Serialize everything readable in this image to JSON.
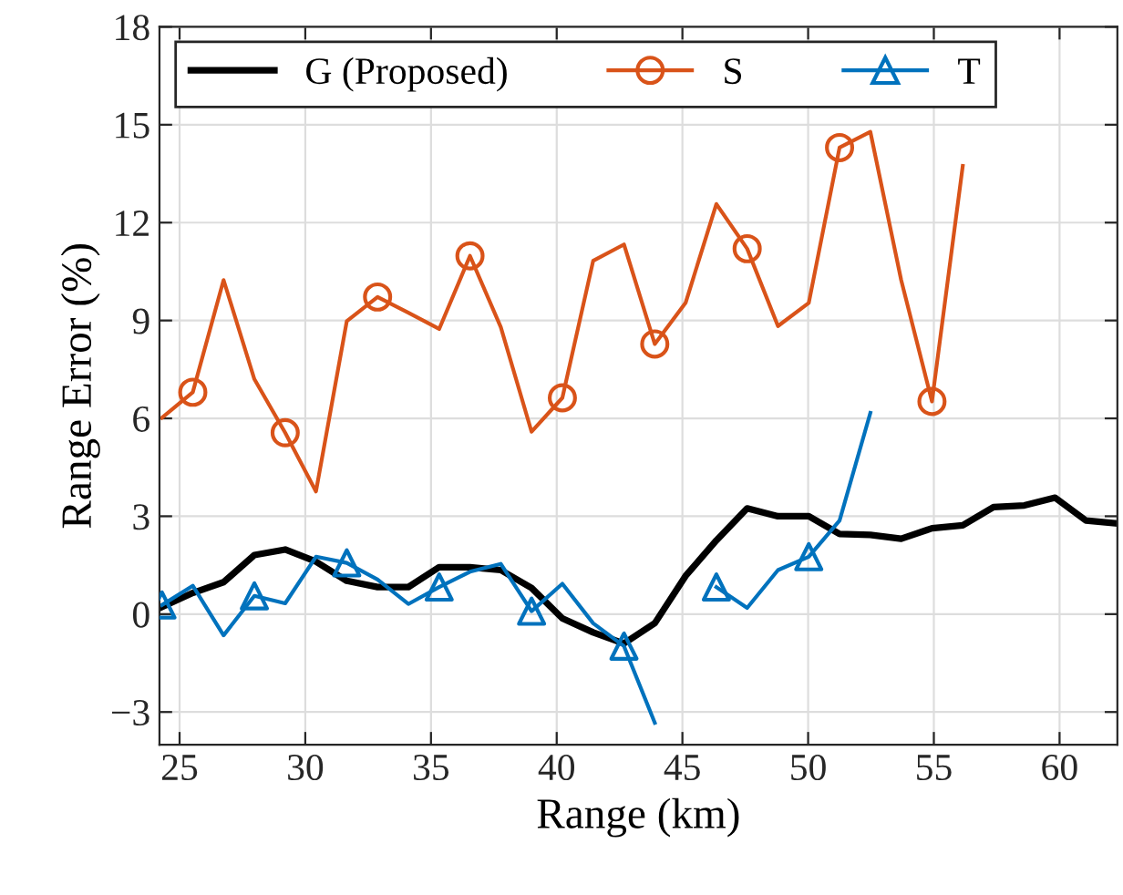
{
  "chart_data": {
    "type": "line",
    "xlabel": "Range (km)",
    "ylabel": "Range Error (%)",
    "xlim": [
      24.2,
      62.3
    ],
    "ylim": [
      -4,
      18
    ],
    "xticks": [
      25,
      30,
      35,
      40,
      45,
      50,
      55,
      60
    ],
    "yticks": [
      {
        "value": -3,
        "label": "−3"
      },
      0,
      3,
      6,
      9,
      12,
      15,
      18
    ],
    "grid": true,
    "legend": "top",
    "x": [
      24.3,
      25.525,
      26.75,
      27.975,
      29.2,
      30.425,
      31.65,
      32.875,
      34.1,
      35.325,
      36.55,
      37.775,
      39.0,
      40.225,
      41.45,
      42.675,
      43.9,
      45.125,
      46.35,
      47.575,
      48.8,
      50.025,
      51.25,
      52.475,
      53.7,
      54.925,
      56.15,
      57.375,
      58.6,
      59.825,
      61.05,
      62.275
    ],
    "series": [
      {
        "name": "G (Proposed)",
        "color": "#000000",
        "values": [
          0.22,
          0.65,
          0.98,
          1.81,
          1.98,
          1.61,
          1.02,
          0.83,
          0.83,
          1.44,
          1.44,
          1.35,
          0.8,
          -0.13,
          -0.56,
          -0.9,
          -0.28,
          1.17,
          2.26,
          3.24,
          3.0,
          3.0,
          2.46,
          2.43,
          2.31,
          2.63,
          2.72,
          3.28,
          3.33,
          3.57,
          2.87,
          2.78
        ]
      },
      {
        "name": "S",
        "color": "#d95319",
        "values": [
          6.02,
          6.8,
          10.24,
          7.2,
          5.56,
          3.76,
          8.98,
          9.72,
          9.24,
          8.74,
          10.98,
          8.8,
          5.59,
          6.63,
          10.83,
          11.33,
          8.28,
          9.54,
          12.57,
          11.2,
          8.83,
          9.54,
          14.3,
          14.78,
          10.24,
          6.52,
          13.74,
          null,
          null,
          null,
          null,
          null
        ]
      },
      {
        "name": "T",
        "color": "#0072bd",
        "values": [
          0.28,
          0.87,
          -0.65,
          0.56,
          0.33,
          1.76,
          1.57,
          1.06,
          0.31,
          0.83,
          1.3,
          1.54,
          0.09,
          0.93,
          -0.28,
          -0.98,
          -3.33,
          null,
          0.83,
          0.19,
          1.35,
          1.76,
          2.87,
          6.17,
          null,
          null,
          null,
          null,
          null,
          null,
          null,
          null
        ]
      },
      {
        "type": "scatter",
        "color": "#d95319",
        "marker": "circle",
        "x": [
          25.525,
          29.2,
          32.875,
          36.55,
          40.225,
          43.9,
          47.575,
          51.25,
          54.925
        ],
        "values": [
          6.8,
          5.56,
          9.72,
          10.98,
          6.63,
          8.28,
          11.2,
          14.3,
          6.52
        ]
      },
      {
        "type": "scatter",
        "color": "#0072bd",
        "marker": "triangle",
        "x": [
          24.3,
          27.975,
          31.65,
          35.325,
          39.0,
          42.675,
          46.35,
          50.025
        ],
        "values": [
          0.28,
          0.56,
          1.57,
          0.83,
          0.09,
          -0.98,
          0.83,
          1.76
        ]
      }
    ]
  }
}
